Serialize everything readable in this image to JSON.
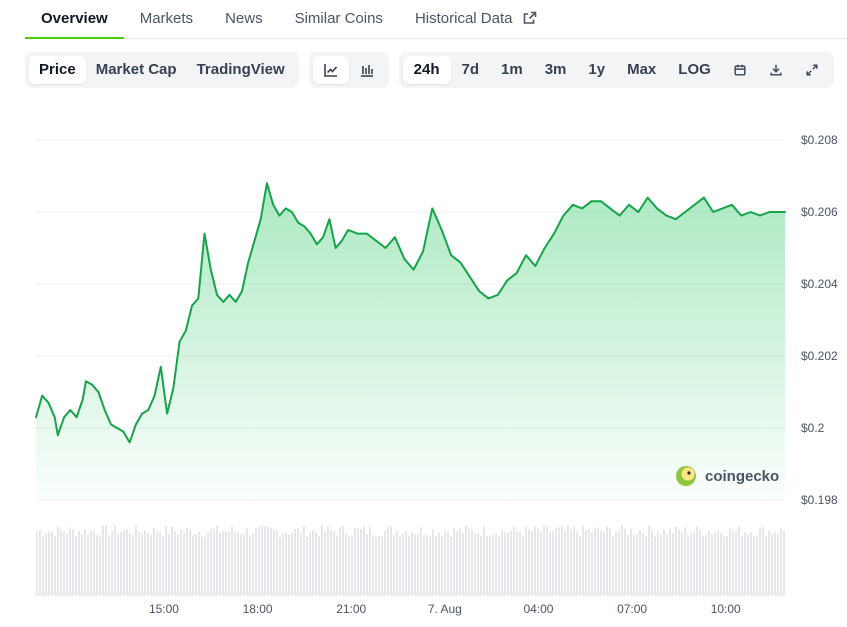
{
  "tabs": [
    {
      "label": "Overview"
    },
    {
      "label": "Markets"
    },
    {
      "label": "News"
    },
    {
      "label": "Similar Coins"
    },
    {
      "label": "Historical Data"
    }
  ],
  "toolbar": {
    "view_types": [
      {
        "label": "Price"
      },
      {
        "label": "Market Cap"
      },
      {
        "label": "TradingView"
      }
    ],
    "chart_styles": [
      {
        "icon": "line-chart-icon"
      },
      {
        "icon": "candlestick-chart-icon"
      }
    ],
    "ranges": [
      {
        "label": "24h"
      },
      {
        "label": "7d"
      },
      {
        "label": "1m"
      },
      {
        "label": "3m"
      },
      {
        "label": "1y"
      },
      {
        "label": "Max"
      },
      {
        "label": "LOG"
      }
    ],
    "tools": [
      {
        "icon": "calendar-icon"
      },
      {
        "icon": "download-icon"
      },
      {
        "icon": "expand-icon"
      }
    ]
  },
  "colors": {
    "accent": "#4bcc00",
    "line": "#16a34a",
    "fill": "#22c55e",
    "volume": "#d1d5db"
  },
  "watermark": "coingecko",
  "chart_data": {
    "type": "area",
    "title": "",
    "xlabel": "",
    "ylabel": "",
    "y_tick_labels": [
      "$0.208",
      "$0.206",
      "$0.204",
      "$0.202",
      "$0.2",
      "$0.198"
    ],
    "y_ticks": [
      0.208,
      0.206,
      0.204,
      0.202,
      0.2,
      0.198
    ],
    "ylim": [
      0.198,
      0.208
    ],
    "x_tick_labels": [
      "15:00",
      "18:00",
      "21:00",
      "7. Aug",
      "04:00",
      "07:00",
      "10:00"
    ],
    "x_ticks": [
      4.1,
      7.1,
      10.1,
      13.1,
      16.1,
      19.1,
      22.1
    ],
    "xlim": [
      0,
      24
    ],
    "grid": true,
    "series": [
      {
        "x": [
          0,
          0.2,
          0.4,
          0.6,
          0.7,
          0.9,
          1.1,
          1.3,
          1.5,
          1.6,
          1.8,
          2.0,
          2.2,
          2.4,
          2.6,
          2.8,
          3.0,
          3.2,
          3.4,
          3.6,
          3.8,
          4.0,
          4.2,
          4.4,
          4.6,
          4.8,
          5.0,
          5.2,
          5.4,
          5.6,
          5.8,
          6.0,
          6.2,
          6.4,
          6.6,
          6.8,
          7.0,
          7.2,
          7.4,
          7.6,
          7.8,
          8.0,
          8.2,
          8.4,
          8.6,
          8.8,
          9.0,
          9.2,
          9.4,
          9.6,
          9.8,
          10.0,
          10.3,
          10.6,
          10.9,
          11.2,
          11.5,
          11.8,
          12.1,
          12.4,
          12.7,
          13.0,
          13.3,
          13.6,
          13.9,
          14.2,
          14.5,
          14.8,
          15.1,
          15.4,
          15.7,
          16.0,
          16.3,
          16.6,
          16.9,
          17.2,
          17.5,
          17.8,
          18.1,
          18.4,
          18.7,
          19.0,
          19.3,
          19.6,
          19.9,
          20.2,
          20.5,
          20.8,
          21.1,
          21.4,
          21.7,
          22.0,
          22.3,
          22.6,
          22.9,
          23.2,
          23.5,
          24.0
        ],
        "y": [
          0.2003,
          0.2009,
          0.2007,
          0.2003,
          0.1998,
          0.2003,
          0.2005,
          0.2003,
          0.2008,
          0.2013,
          0.2012,
          0.201,
          0.2005,
          0.2001,
          0.2,
          0.1999,
          0.1996,
          0.2001,
          0.2004,
          0.2005,
          0.2009,
          0.2017,
          0.2004,
          0.2011,
          0.2024,
          0.2027,
          0.2034,
          0.2036,
          0.2054,
          0.2044,
          0.2037,
          0.2035,
          0.2037,
          0.2035,
          0.2038,
          0.2046,
          0.2052,
          0.2058,
          0.2068,
          0.2062,
          0.2059,
          0.2061,
          0.206,
          0.2057,
          0.2056,
          0.2054,
          0.2051,
          0.2053,
          0.2058,
          0.205,
          0.2052,
          0.2055,
          0.2054,
          0.2054,
          0.2052,
          0.205,
          0.2053,
          0.2047,
          0.2044,
          0.2049,
          0.2061,
          0.2055,
          0.2048,
          0.2046,
          0.2042,
          0.2038,
          0.2036,
          0.2037,
          0.2041,
          0.2043,
          0.2048,
          0.2045,
          0.205,
          0.2054,
          0.2059,
          0.2062,
          0.2061,
          0.2063,
          0.2063,
          0.2061,
          0.2059,
          0.2062,
          0.206,
          0.2064,
          0.2061,
          0.2059,
          0.2058,
          0.206,
          0.2062,
          0.2064,
          0.206,
          0.2061,
          0.2062,
          0.2059,
          0.206,
          0.2059,
          0.206,
          0.206
        ]
      }
    ]
  }
}
